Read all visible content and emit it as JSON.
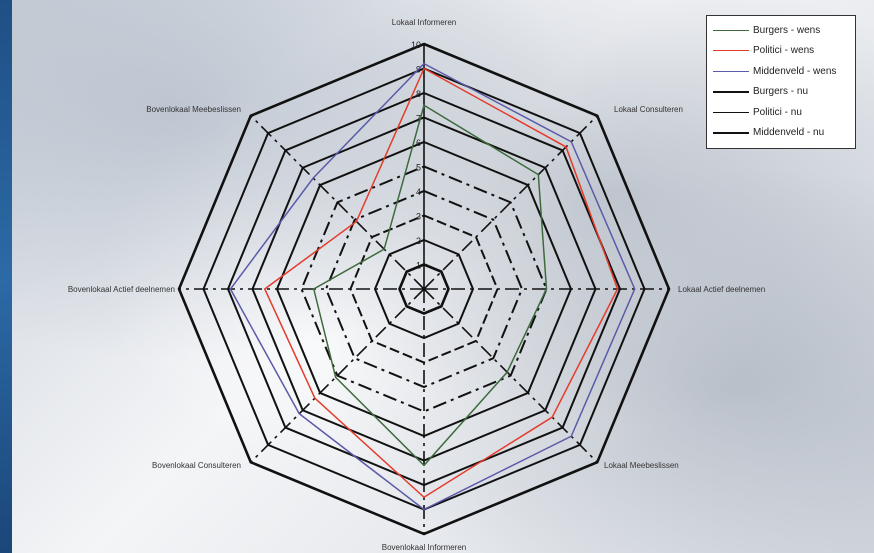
{
  "chart_data": {
    "type": "radar",
    "axes": [
      "Lokaal Informeren",
      "Lokaal Consulteren",
      "Lokaal Actief deelnemen",
      "Lokaal Meebeslissen",
      "Bovenlokaal Informeren",
      "Bovenlokaal Consulteren",
      "Bovenlokaal Actief deelnemen",
      "Bovenlokaal Meebeslissen"
    ],
    "range": [
      0,
      10
    ],
    "ticks": [
      "1",
      "2",
      "3",
      "4",
      "5",
      "6",
      "7",
      "8",
      "9",
      "10"
    ],
    "legend_position": "top-right",
    "series": [
      {
        "name": "Burgers - wens",
        "color": "#3d6b3d",
        "dash": "solid",
        "width": 1.5,
        "values": [
          7.5,
          6.6,
          5.0,
          4.8,
          7.2,
          5.1,
          4.5,
          2.3
        ]
      },
      {
        "name": "Politici - wens",
        "color": "#e53b2b",
        "dash": "solid",
        "width": 1.5,
        "values": [
          9.0,
          8.2,
          7.9,
          7.4,
          8.5,
          6.3,
          6.5,
          3.9
        ]
      },
      {
        "name": "Middenveld - wens",
        "color": "#5a5aa8",
        "dash": "solid",
        "width": 1.5,
        "values": [
          9.2,
          8.5,
          8.6,
          8.5,
          9.0,
          7.2,
          7.9,
          6.4
        ]
      },
      {
        "name": "Burgers - nu",
        "color": "#111111",
        "dash": "solid",
        "width": 2.2,
        "values": [
          1,
          1,
          1,
          1,
          1,
          1,
          1,
          1
        ]
      },
      {
        "name": "Politici - nu",
        "color": "#111111",
        "dash": "solid",
        "width": 1.0,
        "values": [
          1,
          1,
          1,
          1,
          1,
          1,
          1,
          1
        ]
      },
      {
        "name": "Middenveld - nu",
        "color": "#111111",
        "dash": "solid",
        "width": 2.6,
        "values": [
          1,
          1,
          1,
          1,
          1,
          1,
          1,
          1
        ]
      }
    ]
  },
  "colors": {
    "grid": "#111111",
    "edge": "#2c6aa6"
  }
}
